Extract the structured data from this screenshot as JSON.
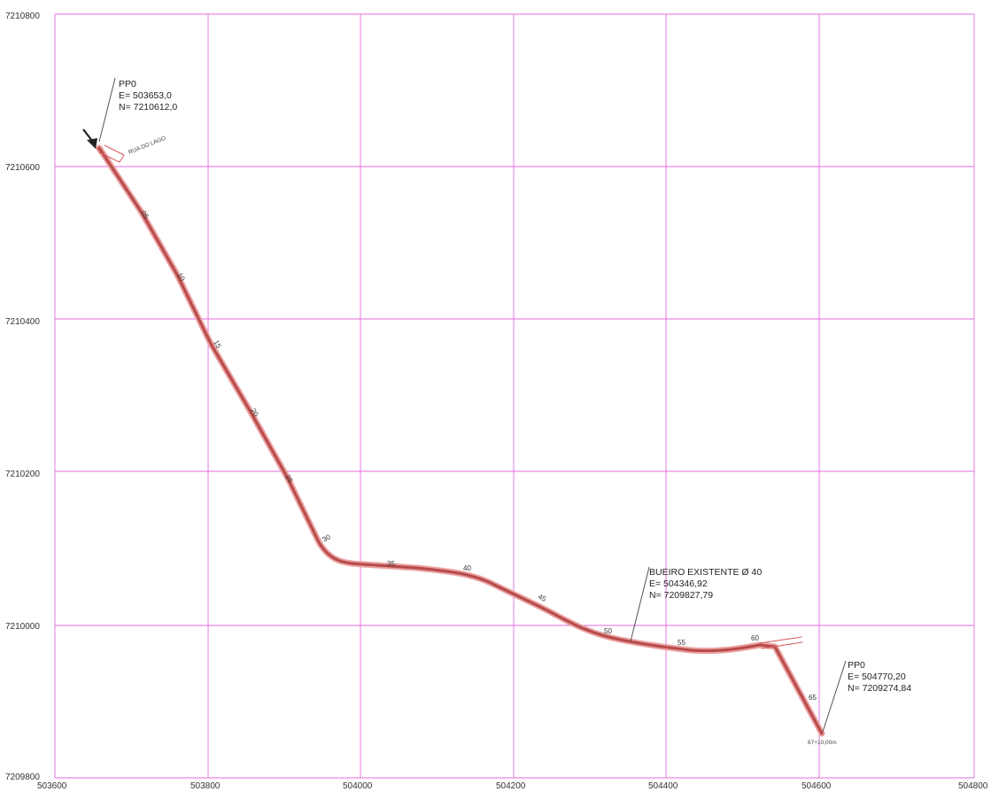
{
  "map": {
    "x_ticks": [
      "503600",
      "503800",
      "504000",
      "504200",
      "504400",
      "504600",
      "504800"
    ],
    "y_ticks": [
      "7210800",
      "7210600",
      "7210400",
      "7210200",
      "7210000",
      "7209800"
    ],
    "grid_color": "#e36ae3",
    "road_color": "#b84a4a",
    "road_edge_color": "#e9a0a0"
  },
  "start_point": {
    "name": "PP0",
    "easting": "E= 503653,0",
    "northing": "N= 7210612,0",
    "road_name": "RUA DO LAGO"
  },
  "culvert": {
    "label": "BUEIRO EXISTENTE Ø 40",
    "easting": "E= 504346,92",
    "northing": "N= 7209827,79"
  },
  "end_point": {
    "name": "PP0",
    "easting": "E= 504770,20",
    "northing": "N= 7209274,84",
    "chainage": "67+10,00m"
  },
  "stations": [
    "05",
    "10",
    "15",
    "20",
    "25",
    "30",
    "35",
    "40",
    "45",
    "50",
    "55",
    "60",
    "65"
  ]
}
